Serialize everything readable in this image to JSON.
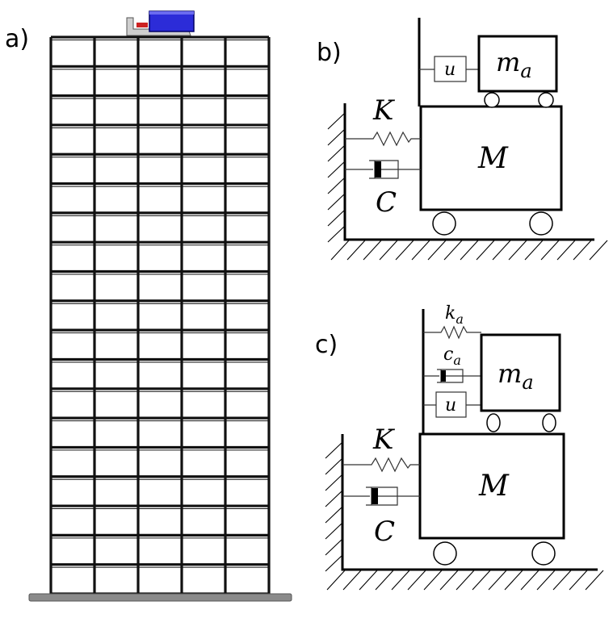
{
  "panels": {
    "a": {
      "label": "a)"
    },
    "b": {
      "label": "b)",
      "symbols": {
        "K": "K",
        "C": "C",
        "M": "M",
        "m": "m",
        "m_sub": "a",
        "u": "u"
      }
    },
    "c": {
      "label": "c)",
      "symbols": {
        "K": "K",
        "C": "C",
        "M": "M",
        "m": "m",
        "m_sub": "a",
        "u": "u",
        "k": "k",
        "k_sub": "a",
        "c": "c",
        "c_sub": "a"
      }
    }
  },
  "building": {
    "stories": 19,
    "bays": 5,
    "colors": {
      "frame": "#111111",
      "base": "#888888",
      "actuator": "#2222cc",
      "actuator_dark": "#000066",
      "mount": "#cccccc",
      "accent": "#cc2222"
    }
  }
}
